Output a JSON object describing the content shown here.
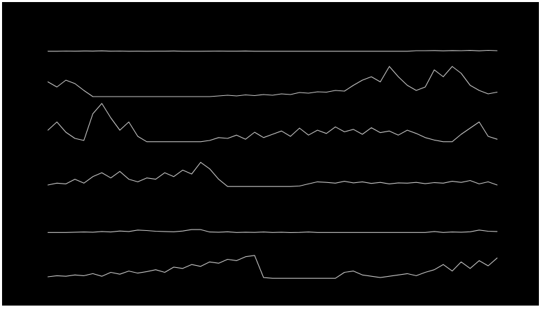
{
  "chart_data": {
    "type": "line",
    "title": "",
    "xlabel": "",
    "ylabel": "",
    "axes_visible": false,
    "grid": false,
    "legend": "none",
    "x_range": [
      0,
      100
    ],
    "y_range": [
      0,
      1
    ],
    "x": [
      0,
      2,
      4,
      6,
      8,
      10,
      12,
      14,
      16,
      18,
      20,
      22,
      24,
      26,
      28,
      30,
      32,
      34,
      36,
      38,
      40,
      42,
      44,
      46,
      48,
      50,
      52,
      54,
      56,
      58,
      60,
      62,
      64,
      66,
      68,
      70,
      72,
      74,
      76,
      78,
      80,
      82,
      84,
      86,
      88,
      90,
      92,
      94,
      96,
      98,
      100
    ],
    "series": [
      {
        "values": [
          0.02,
          0.02,
          0.05,
          0.03,
          0.06,
          0.04,
          0.08,
          0.03,
          0.05,
          0.02,
          0.03,
          0.02,
          0.03,
          0.03,
          0.06,
          0.02,
          0.02,
          0.02,
          0.03,
          0.05,
          0.03,
          0.03,
          0.06,
          0.02,
          0.02,
          0.02,
          0.02,
          0.02,
          0.02,
          0.02,
          0.02,
          0.02,
          0.02,
          0.02,
          0.02,
          0.02,
          0.02,
          0.02,
          0.02,
          0.02,
          0.02,
          0.1,
          0.1,
          0.12,
          0.08,
          0.12,
          0.1,
          0.14,
          0.08,
          0.15,
          0.1
        ]
      },
      {
        "values": [
          0.45,
          0.3,
          0.5,
          0.4,
          0.2,
          0.02,
          0.02,
          0.02,
          0.02,
          0.02,
          0.02,
          0.02,
          0.02,
          0.02,
          0.02,
          0.02,
          0.02,
          0.02,
          0.02,
          0.04,
          0.06,
          0.04,
          0.07,
          0.05,
          0.08,
          0.06,
          0.1,
          0.08,
          0.14,
          0.12,
          0.16,
          0.15,
          0.2,
          0.18,
          0.35,
          0.5,
          0.6,
          0.45,
          0.9,
          0.6,
          0.35,
          0.2,
          0.3,
          0.8,
          0.6,
          0.9,
          0.7,
          0.35,
          0.2,
          0.1,
          0.15
        ]
      },
      {
        "values": [
          0.3,
          0.5,
          0.25,
          0.1,
          0.05,
          0.7,
          0.95,
          0.6,
          0.3,
          0.5,
          0.15,
          0.02,
          0.02,
          0.02,
          0.02,
          0.02,
          0.02,
          0.02,
          0.05,
          0.12,
          0.1,
          0.18,
          0.08,
          0.25,
          0.12,
          0.2,
          0.28,
          0.15,
          0.35,
          0.18,
          0.3,
          0.22,
          0.38,
          0.26,
          0.32,
          0.2,
          0.36,
          0.24,
          0.28,
          0.18,
          0.3,
          0.22,
          0.12,
          0.06,
          0.02,
          0.02,
          0.2,
          0.35,
          0.5,
          0.15,
          0.08
        ]
      },
      {
        "values": [
          0.08,
          0.15,
          0.12,
          0.3,
          0.15,
          0.4,
          0.55,
          0.35,
          0.6,
          0.3,
          0.2,
          0.35,
          0.3,
          0.55,
          0.4,
          0.65,
          0.5,
          0.95,
          0.7,
          0.3,
          0.02,
          0.02,
          0.02,
          0.02,
          0.02,
          0.02,
          0.02,
          0.02,
          0.04,
          0.12,
          0.2,
          0.18,
          0.15,
          0.22,
          0.16,
          0.2,
          0.14,
          0.18,
          0.12,
          0.16,
          0.15,
          0.18,
          0.13,
          0.17,
          0.15,
          0.22,
          0.18,
          0.25,
          0.12,
          0.2,
          0.08
        ]
      },
      {
        "values": [
          0.05,
          0.05,
          0.05,
          0.08,
          0.1,
          0.08,
          0.15,
          0.1,
          0.2,
          0.15,
          0.3,
          0.25,
          0.18,
          0.15,
          0.12,
          0.2,
          0.35,
          0.35,
          0.1,
          0.08,
          0.12,
          0.05,
          0.08,
          0.06,
          0.1,
          0.05,
          0.08,
          0.04,
          0.06,
          0.1,
          0.05,
          0.05,
          0.05,
          0.05,
          0.05,
          0.05,
          0.05,
          0.05,
          0.05,
          0.05,
          0.05,
          0.05,
          0.05,
          0.15,
          0.05,
          0.1,
          0.08,
          0.12,
          0.3,
          0.18,
          0.15
        ]
      },
      {
        "values": [
          0.08,
          0.12,
          0.1,
          0.15,
          0.12,
          0.2,
          0.1,
          0.25,
          0.18,
          0.3,
          0.22,
          0.28,
          0.35,
          0.25,
          0.45,
          0.4,
          0.55,
          0.48,
          0.65,
          0.6,
          0.75,
          0.7,
          0.85,
          0.9,
          0.05,
          0.02,
          0.02,
          0.02,
          0.02,
          0.02,
          0.02,
          0.02,
          0.02,
          0.25,
          0.3,
          0.15,
          0.1,
          0.05,
          0.1,
          0.15,
          0.2,
          0.12,
          0.25,
          0.35,
          0.55,
          0.3,
          0.65,
          0.4,
          0.7,
          0.5,
          0.8
        ]
      }
    ]
  },
  "colors": {
    "frame": "#ffffff",
    "background": "#000000",
    "trace": "#c8c8c8"
  }
}
